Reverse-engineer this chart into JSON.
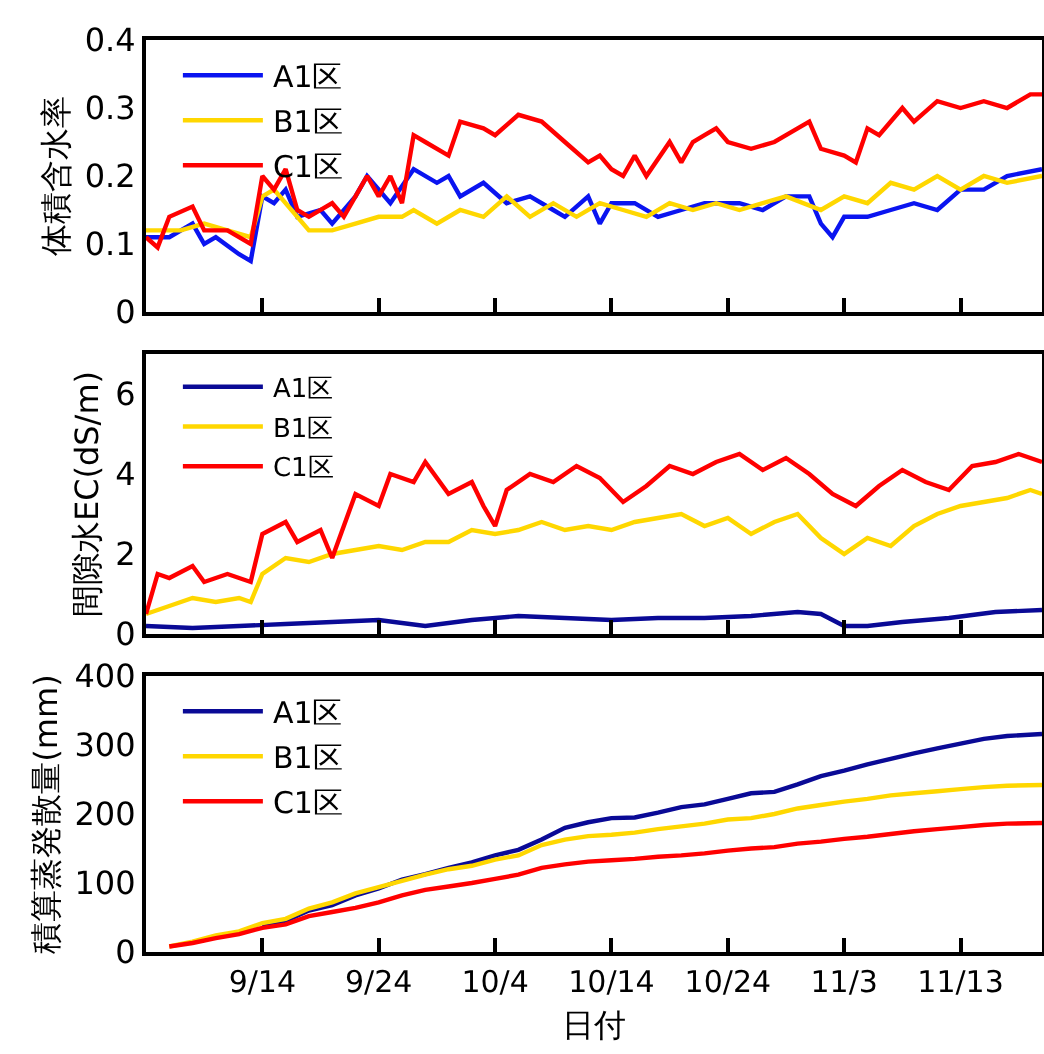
{
  "chart_data": [
    {
      "type": "line",
      "ylabel": "体積含水率",
      "ylim": [
        0,
        0.4
      ],
      "yticks": [
        0,
        0.1,
        0.2,
        0.3,
        0.4
      ],
      "xlim": [
        "--09-04",
        "--11-20"
      ],
      "xticks": [
        {
          "value": "--09-14",
          "label": null
        },
        {
          "value": "--09-24",
          "label": null
        },
        {
          "value": "--10-04",
          "label": null
        },
        {
          "value": "--10-14",
          "label": null
        },
        {
          "value": "--10-24",
          "label": null
        },
        {
          "value": "--11-03",
          "label": null
        },
        {
          "value": "--11-13",
          "label": null
        }
      ],
      "tick_labels": "y",
      "legend": "top left",
      "grid": false,
      "marker": "none",
      "line_style": "solid",
      "series": [
        {
          "name": "A1区",
          "color": "#0a14f0",
          "x": [
            "--09-04",
            "--09-06",
            "--09-08",
            "--09-09",
            "--09-10",
            "--09-12",
            "--09-13",
            "--09-14",
            "--09-15",
            "--09-16",
            "--09-17",
            "--09-19",
            "--09-20",
            "--09-22",
            "--09-23",
            "--09-25",
            "--09-27",
            "--09-29",
            "--09-30",
            "--10-01",
            "--10-03",
            "--10-05",
            "--10-07",
            "--10-09",
            "--10-10",
            "--10-12",
            "--10-13",
            "--10-14",
            "--10-16",
            "--10-18",
            "--10-20",
            "--10-22",
            "--10-25",
            "--10-27",
            "--10-29",
            "--10-31",
            "--11-01",
            "--11-02",
            "--11-03",
            "--11-05",
            "--11-07",
            "--11-09",
            "--11-11",
            "--11-13",
            "--11-15",
            "--11-17",
            "--11-20"
          ],
          "values": [
            0.11,
            0.11,
            0.13,
            0.1,
            0.11,
            0.085,
            0.075,
            0.17,
            0.16,
            0.18,
            0.14,
            0.15,
            0.13,
            0.17,
            0.2,
            0.16,
            0.21,
            0.19,
            0.2,
            0.17,
            0.19,
            0.16,
            0.17,
            0.15,
            0.14,
            0.17,
            0.13,
            0.16,
            0.16,
            0.14,
            0.15,
            0.16,
            0.16,
            0.15,
            0.17,
            0.17,
            0.13,
            0.11,
            0.14,
            0.14,
            0.15,
            0.16,
            0.15,
            0.18,
            0.18,
            0.2,
            0.21
          ]
        },
        {
          "name": "B1区",
          "color": "#ffd700",
          "x": [
            "--09-04",
            "--09-07",
            "--09-09",
            "--09-11",
            "--09-13",
            "--09-14",
            "--09-15",
            "--09-17",
            "--09-18",
            "--09-20",
            "--09-22",
            "--09-24",
            "--09-26",
            "--09-27",
            "--09-29",
            "--10-01",
            "--10-03",
            "--10-05",
            "--10-07",
            "--10-09",
            "--10-11",
            "--10-13",
            "--10-15",
            "--10-17",
            "--10-19",
            "--10-21",
            "--10-23",
            "--10-25",
            "--10-27",
            "--10-29",
            "--11-01",
            "--11-03",
            "--11-05",
            "--11-07",
            "--11-09",
            "--11-11",
            "--11-13",
            "--11-15",
            "--11-17",
            "--11-20"
          ],
          "values": [
            0.12,
            0.12,
            0.13,
            0.12,
            0.11,
            0.17,
            0.18,
            0.14,
            0.12,
            0.12,
            0.13,
            0.14,
            0.14,
            0.15,
            0.13,
            0.15,
            0.14,
            0.17,
            0.14,
            0.16,
            0.14,
            0.16,
            0.15,
            0.14,
            0.16,
            0.15,
            0.16,
            0.15,
            0.16,
            0.17,
            0.15,
            0.17,
            0.16,
            0.19,
            0.18,
            0.2,
            0.18,
            0.2,
            0.19,
            0.2
          ]
        },
        {
          "name": "C1区",
          "color": "#ff0000",
          "x": [
            "--09-04",
            "--09-05",
            "--09-06",
            "--09-08",
            "--09-09",
            "--09-11",
            "--09-13",
            "--09-14",
            "--09-15",
            "--09-16",
            "--09-17",
            "--09-18",
            "--09-20",
            "--09-21",
            "--09-22",
            "--09-23",
            "--09-24",
            "--09-25",
            "--09-26",
            "--09-27",
            "--09-28",
            "--09-30",
            "--10-01",
            "--10-03",
            "--10-04",
            "--10-06",
            "--10-08",
            "--10-10",
            "--10-12",
            "--10-13",
            "--10-14",
            "--10-15",
            "--10-16",
            "--10-17",
            "--10-19",
            "--10-20",
            "--10-21",
            "--10-22",
            "--10-23",
            "--10-24",
            "--10-26",
            "--10-28",
            "--10-30",
            "--10-31",
            "--11-01",
            "--11-03",
            "--11-04",
            "--11-05",
            "--11-06",
            "--11-08",
            "--11-09",
            "--11-11",
            "--11-13",
            "--11-15",
            "--11-17",
            "--11-19",
            "--11-20"
          ],
          "values": [
            0.11,
            0.095,
            0.14,
            0.155,
            0.12,
            0.12,
            0.1,
            0.2,
            0.18,
            0.21,
            0.15,
            0.14,
            0.16,
            0.14,
            0.17,
            0.2,
            0.17,
            0.2,
            0.16,
            0.26,
            0.25,
            0.23,
            0.28,
            0.27,
            0.26,
            0.29,
            0.28,
            0.25,
            0.22,
            0.23,
            0.21,
            0.2,
            0.23,
            0.2,
            0.25,
            0.22,
            0.25,
            0.26,
            0.27,
            0.25,
            0.24,
            0.25,
            0.27,
            0.28,
            0.24,
            0.23,
            0.22,
            0.27,
            0.26,
            0.3,
            0.28,
            0.31,
            0.3,
            0.31,
            0.3,
            0.32,
            0.32
          ]
        }
      ]
    },
    {
      "type": "line",
      "ylabel": "間隙水EC(dS/m)",
      "ylim": [
        0,
        7
      ],
      "yticks": [
        0,
        2,
        4,
        6
      ],
      "xlim": [
        "--09-04",
        "--11-20"
      ],
      "xticks": [
        {
          "value": "--09-14",
          "label": null
        },
        {
          "value": "--09-24",
          "label": null
        },
        {
          "value": "--10-04",
          "label": null
        },
        {
          "value": "--10-14",
          "label": null
        },
        {
          "value": "--10-24",
          "label": null
        },
        {
          "value": "--11-03",
          "label": null
        },
        {
          "value": "--11-13",
          "label": null
        }
      ],
      "tick_labels": "y",
      "legend": "top left",
      "grid": false,
      "marker": "none",
      "line_style": "solid",
      "series": [
        {
          "name": "A1区",
          "color": "#0a0a96",
          "x": [
            "--09-04",
            "--09-08",
            "--09-12",
            "--09-16",
            "--09-20",
            "--09-24",
            "--09-28",
            "--10-02",
            "--10-06",
            "--10-10",
            "--10-14",
            "--10-18",
            "--10-22",
            "--10-26",
            "--10-30",
            "--11-01",
            "--11-03",
            "--11-05",
            "--11-08",
            "--11-12",
            "--11-16",
            "--11-20"
          ],
          "values": [
            0.2,
            0.15,
            0.2,
            0.25,
            0.3,
            0.35,
            0.2,
            0.35,
            0.45,
            0.4,
            0.35,
            0.4,
            0.4,
            0.45,
            0.55,
            0.5,
            0.2,
            0.2,
            0.3,
            0.4,
            0.55,
            0.6
          ]
        },
        {
          "name": "B1区",
          "color": "#ffd700",
          "x": [
            "--09-04",
            "--09-06",
            "--09-08",
            "--09-10",
            "--09-12",
            "--09-13",
            "--09-14",
            "--09-16",
            "--09-18",
            "--09-20",
            "--09-22",
            "--09-24",
            "--09-26",
            "--09-28",
            "--09-30",
            "--10-02",
            "--10-04",
            "--10-06",
            "--10-08",
            "--10-10",
            "--10-12",
            "--10-14",
            "--10-16",
            "--10-18",
            "--10-20",
            "--10-22",
            "--10-24",
            "--10-26",
            "--10-28",
            "--10-30",
            "--11-01",
            "--11-03",
            "--11-05",
            "--11-07",
            "--11-09",
            "--11-11",
            "--11-13",
            "--11-15",
            "--11-17",
            "--11-19",
            "--11-20"
          ],
          "values": [
            0.5,
            0.7,
            0.9,
            0.8,
            0.9,
            0.8,
            1.5,
            1.9,
            1.8,
            2.0,
            2.1,
            2.2,
            2.1,
            2.3,
            2.3,
            2.6,
            2.5,
            2.6,
            2.8,
            2.6,
            2.7,
            2.6,
            2.8,
            2.9,
            3.0,
            2.7,
            2.9,
            2.5,
            2.8,
            3.0,
            2.4,
            2.0,
            2.4,
            2.2,
            2.7,
            3.0,
            3.2,
            3.3,
            3.4,
            3.6,
            3.5
          ]
        },
        {
          "name": "C1区",
          "color": "#ff0000",
          "x": [
            "--09-04",
            "--09-05",
            "--09-06",
            "--09-08",
            "--09-09",
            "--09-11",
            "--09-13",
            "--09-14",
            "--09-16",
            "--09-17",
            "--09-19",
            "--09-20",
            "--09-22",
            "--09-24",
            "--09-25",
            "--09-27",
            "--09-28",
            "--09-30",
            "--10-02",
            "--10-03",
            "--10-04",
            "--10-05",
            "--10-07",
            "--10-09",
            "--10-11",
            "--10-13",
            "--10-15",
            "--10-17",
            "--10-19",
            "--10-21",
            "--10-23",
            "--10-25",
            "--10-27",
            "--10-29",
            "--10-31",
            "--11-02",
            "--11-04",
            "--11-06",
            "--11-08",
            "--11-10",
            "--11-12",
            "--11-14",
            "--11-16",
            "--11-18",
            "--11-20"
          ],
          "values": [
            0.5,
            1.5,
            1.4,
            1.7,
            1.3,
            1.5,
            1.3,
            2.5,
            2.8,
            2.3,
            2.6,
            1.9,
            3.5,
            3.2,
            4.0,
            3.8,
            4.3,
            3.5,
            3.8,
            3.2,
            2.7,
            3.6,
            4.0,
            3.8,
            4.2,
            3.9,
            3.3,
            3.7,
            4.2,
            4.0,
            4.3,
            4.5,
            4.1,
            4.4,
            4.0,
            3.5,
            3.2,
            3.7,
            4.1,
            3.8,
            3.6,
            4.2,
            4.3,
            4.5,
            4.3
          ]
        }
      ]
    },
    {
      "type": "line",
      "ylabel": "積算蒸発散量(mm)",
      "xlabel": "日付",
      "ylim": [
        0,
        400
      ],
      "yticks": [
        0,
        100,
        200,
        300,
        400
      ],
      "xlim": [
        "--09-04",
        "--11-20"
      ],
      "xticks": [
        {
          "value": "--09-14",
          "label": "9/14"
        },
        {
          "value": "--09-24",
          "label": "9/24"
        },
        {
          "value": "--10-04",
          "label": "10/4"
        },
        {
          "value": "--10-14",
          "label": "10/14"
        },
        {
          "value": "--10-24",
          "label": "10/24"
        },
        {
          "value": "--11-03",
          "label": "11/3"
        },
        {
          "value": "--11-13",
          "label": "11/13"
        }
      ],
      "legend": "top left",
      "grid": false,
      "marker": "none",
      "line_style": "solid",
      "series": [
        {
          "name": "A1区",
          "color": "#0a0a96",
          "x": [
            "--09-14",
            "--09-16",
            "--09-18",
            "--09-20",
            "--09-22",
            "--09-24",
            "--09-26",
            "--09-28",
            "--09-30",
            "--10-02",
            "--10-04",
            "--10-06",
            "--10-08",
            "--10-10",
            "--10-12",
            "--10-14",
            "--10-16",
            "--10-18",
            "--10-20",
            "--10-22",
            "--10-24",
            "--10-26",
            "--10-28",
            "--10-30",
            "--11-01",
            "--11-03",
            "--11-05",
            "--11-07",
            "--11-09",
            "--11-11",
            "--11-13",
            "--11-15",
            "--11-17",
            "--11-20"
          ],
          "values": [
            37,
            45,
            60,
            68,
            82,
            92,
            105,
            113,
            122,
            130,
            140,
            148,
            163,
            180,
            188,
            194,
            195,
            202,
            210,
            214,
            222,
            230,
            232,
            243,
            255,
            263,
            272,
            280,
            288,
            295,
            302,
            309,
            313,
            316
          ]
        },
        {
          "name": "B1区",
          "color": "#ffd700",
          "x": [
            "--09-06",
            "--09-08",
            "--09-10",
            "--09-12",
            "--09-14",
            "--09-16",
            "--09-18",
            "--09-20",
            "--09-22",
            "--09-24",
            "--09-26",
            "--09-28",
            "--09-30",
            "--10-02",
            "--10-04",
            "--10-06",
            "--10-08",
            "--10-10",
            "--10-12",
            "--10-14",
            "--10-16",
            "--10-18",
            "--10-20",
            "--10-22",
            "--10-24",
            "--10-26",
            "--10-28",
            "--10-30",
            "--11-01",
            "--11-03",
            "--11-05",
            "--11-07",
            "--11-09",
            "--11-11",
            "--11-13",
            "--11-15",
            "--11-17",
            "--11-20"
          ],
          "values": [
            8,
            15,
            24,
            30,
            42,
            48,
            63,
            72,
            85,
            94,
            103,
            112,
            120,
            125,
            134,
            140,
            155,
            163,
            168,
            170,
            173,
            178,
            182,
            186,
            192,
            194,
            200,
            208,
            213,
            218,
            222,
            227,
            230,
            233,
            236,
            239,
            241,
            242
          ]
        },
        {
          "name": "C1区",
          "color": "#ff0000",
          "x": [
            "--09-06",
            "--09-08",
            "--09-10",
            "--09-12",
            "--09-14",
            "--09-16",
            "--09-18",
            "--09-20",
            "--09-22",
            "--09-24",
            "--09-26",
            "--09-28",
            "--09-30",
            "--10-02",
            "--10-04",
            "--10-06",
            "--10-08",
            "--10-10",
            "--10-12",
            "--10-14",
            "--10-16",
            "--10-18",
            "--10-20",
            "--10-22",
            "--10-24",
            "--10-26",
            "--10-28",
            "--10-30",
            "--11-01",
            "--11-03",
            "--11-05",
            "--11-07",
            "--11-09",
            "--11-11",
            "--11-13",
            "--11-15",
            "--11-17",
            "--11-20"
          ],
          "values": [
            8,
            13,
            20,
            26,
            35,
            40,
            52,
            58,
            64,
            72,
            82,
            90,
            95,
            100,
            106,
            112,
            122,
            127,
            131,
            133,
            135,
            138,
            140,
            143,
            147,
            150,
            152,
            157,
            160,
            164,
            167,
            171,
            175,
            178,
            181,
            184,
            186,
            187
          ]
        }
      ]
    }
  ]
}
